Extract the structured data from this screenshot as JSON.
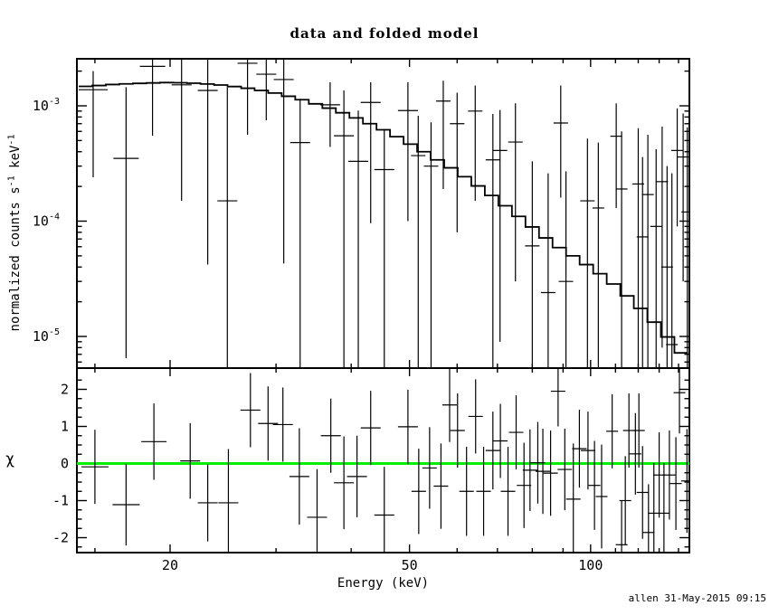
{
  "title": "data and folded model",
  "x_label": "Energy (keV)",
  "chi_label": "χ",
  "credit": "allen 31-May-2015 09:15",
  "colors": {
    "foreground": "#000000",
    "background": "#ffffff",
    "model_line": "#000000",
    "data_cross": "#000000",
    "zero_line_green": "#00f000"
  },
  "y_axis_top_label_segments": [
    {
      "text": "normalized counts s"
    },
    {
      "text": "-1",
      "sup": true
    },
    {
      "text": " keV"
    },
    {
      "text": "-1",
      "sup": true
    }
  ],
  "chart_data": [
    {
      "type": "line",
      "panel": "top",
      "title": "data and folded model",
      "xlabel": "Energy (keV)",
      "ylabel": "normalized counts s^-1 keV^-1",
      "xscale": "log",
      "yscale": "log",
      "xlim": [
        14.0,
        145.9
      ],
      "ylim": [
        5.3e-06,
        0.00253
      ],
      "grid": false,
      "legend": "none",
      "x_major_ticks": [
        {
          "value": 20,
          "label": "20"
        },
        {
          "value": 50,
          "label": "50"
        },
        {
          "value": 100,
          "label": "100"
        }
      ],
      "x_minor_ticks": [
        15,
        30,
        40,
        60,
        70,
        80,
        90,
        110,
        120,
        130,
        140
      ],
      "y_major_ticks": [
        {
          "value": 0.001,
          "base": "10",
          "exp": "-3"
        },
        {
          "value": 0.0001,
          "base": "10",
          "exp": "-4"
        },
        {
          "value": 1e-05,
          "base": "10",
          "exp": "-5"
        }
      ],
      "y_minor_ticks": [
        0.002,
        0.0009,
        0.0008,
        0.0007,
        0.0006,
        0.0005,
        0.0004,
        0.0003,
        0.0002,
        9e-05,
        8e-05,
        7e-05,
        6e-05,
        5e-05,
        4e-05,
        3e-05,
        2e-05,
        9e-06,
        8e-06,
        7e-06,
        6e-06
      ],
      "model": {
        "name": "folded model",
        "style": "step-histogram",
        "bin_edges_keV": [
          14.1,
          14.85,
          15.64,
          16.47,
          17.35,
          18.27,
          19.24,
          20.26,
          21.34,
          22.47,
          23.67,
          24.92,
          26.25,
          27.64,
          29.11,
          30.66,
          32.29,
          34.01,
          35.82,
          37.72,
          39.73,
          41.84,
          44.07,
          46.41,
          48.88,
          51.48,
          54.22,
          57.1,
          60.14,
          63.34,
          66.71,
          70.26,
          74.0,
          77.93,
          82.08,
          86.44,
          91.04,
          95.89,
          100.99,
          106.36,
          112.02,
          117.98,
          124.25,
          130.86,
          137.82,
          145.15
        ],
        "values": [
          0.001475,
          0.0015,
          0.00153,
          0.00155,
          0.001565,
          0.00158,
          0.00159,
          0.001585,
          0.00157,
          0.001545,
          0.001515,
          0.00147,
          0.00142,
          0.00136,
          0.00129,
          0.00121,
          0.00113,
          0.00104,
          0.000955,
          0.00087,
          0.000785,
          0.0007,
          0.00062,
          0.00054,
          0.000465,
          0.0004,
          0.00034,
          0.00029,
          0.000243,
          0.000202,
          0.000167,
          0.000136,
          0.00011,
          8.9e-05,
          7.15e-05,
          5.9e-05,
          5e-05,
          4.2e-05,
          3.5e-05,
          2.85e-05,
          2.25e-05,
          1.75e-05,
          1.33e-05,
          9.9e-06,
          7.2e-06
        ]
      },
      "data_points": [
        {
          "e": 14.9,
          "v": 0.00138,
          "lo": 0.00024,
          "hi": 0.002,
          "hw": 16
        },
        {
          "e": 16.9,
          "v": 0.00035,
          "lo": 6.5e-06,
          "hi": 0.00145
        },
        {
          "e": 18.7,
          "v": 0.0022,
          "lo": 0.00055,
          "hi": 0.0035
        },
        {
          "e": 20.9,
          "v": 0.00152,
          "lo": 0.00015,
          "hi": 0.0029
        },
        {
          "e": 23.1,
          "v": 0.00136,
          "lo": 4.2e-05,
          "hi": 0.0029
        },
        {
          "e": 24.9,
          "v": 0.00015,
          "lo": 4.5e-06,
          "hi": 0.00144
        },
        {
          "e": 26.9,
          "v": 0.00234,
          "lo": 0.00056,
          "hi": 0.0034
        },
        {
          "e": 28.9,
          "v": 0.00188,
          "lo": 0.00075,
          "hi": 0.0031
        },
        {
          "e": 30.9,
          "v": 0.00169,
          "lo": 4.3e-05,
          "hi": 0.0029
        },
        {
          "e": 32.9,
          "v": 0.00048,
          "lo": 4.5e-06,
          "hi": 0.00115
        },
        {
          "e": 36.9,
          "v": 0.00102,
          "lo": 0.00044,
          "hi": 0.0016
        },
        {
          "e": 38.9,
          "v": 0.00055,
          "lo": 4.5e-06,
          "hi": 0.00136
        },
        {
          "e": 41.1,
          "v": 0.00033,
          "lo": 4.5e-06,
          "hi": 0.00091
        },
        {
          "e": 43.1,
          "v": 0.00107,
          "lo": 9.6e-05,
          "hi": 0.0016
        },
        {
          "e": 45.4,
          "v": 0.00028,
          "lo": 4.5e-06,
          "hi": 0.00063
        },
        {
          "e": 49.7,
          "v": 0.00091,
          "lo": 0.0001,
          "hi": 0.0016
        },
        {
          "e": 51.7,
          "v": 0.00037,
          "lo": 4.5e-06,
          "hi": 0.00082
        },
        {
          "e": 54.3,
          "v": 0.0003,
          "lo": 4.5e-06,
          "hi": 0.00072
        },
        {
          "e": 56.9,
          "v": 0.0011,
          "lo": 0.00019,
          "hi": 0.00165
        },
        {
          "e": 60.0,
          "v": 0.0007,
          "lo": 8e-05,
          "hi": 0.0013
        },
        {
          "e": 64.3,
          "v": 0.0009,
          "lo": 0.00015,
          "hi": 0.0015
        },
        {
          "e": 68.8,
          "v": 0.00034,
          "lo": 4.5e-06,
          "hi": 0.00085
        },
        {
          "e": 70.7,
          "v": 0.00041,
          "lo": 9e-06,
          "hi": 0.00092
        },
        {
          "e": 75.0,
          "v": 0.000485,
          "lo": 3e-05,
          "hi": 0.00105
        },
        {
          "e": 80.0,
          "v": 6.1e-05,
          "lo": 4.5e-06,
          "hi": 0.00033
        },
        {
          "e": 85.0,
          "v": 2.4e-05,
          "lo": 4e-06,
          "hi": 0.00026
        },
        {
          "e": 89.2,
          "v": 0.00071,
          "lo": 0.00016,
          "hi": 0.0015
        },
        {
          "e": 91.0,
          "v": 3e-05,
          "lo": 4e-06,
          "hi": 0.00027
        },
        {
          "e": 98.8,
          "v": 0.00015,
          "lo": 4.5e-06,
          "hi": 0.00052
        },
        {
          "e": 103.0,
          "v": 0.00013,
          "lo": 4.5e-06,
          "hi": 0.00048
        },
        {
          "e": 110.3,
          "v": 0.000545,
          "lo": 0.00013,
          "hi": 0.00105
        },
        {
          "e": 112.6,
          "v": 0.00019,
          "lo": 4.5e-06,
          "hi": 0.0006
        },
        {
          "e": 120.0,
          "v": 0.00021,
          "lo": 4.5e-06,
          "hi": 0.00064
        },
        {
          "e": 122.0,
          "v": 7.3e-05,
          "lo": 4.5e-06,
          "hi": 0.00036
        },
        {
          "e": 124.5,
          "v": 0.00017,
          "lo": 4.5e-06,
          "hi": 0.00056
        },
        {
          "e": 128.5,
          "v": 9e-05,
          "lo": 4.5e-06,
          "hi": 0.00042
        },
        {
          "e": 131.5,
          "v": 0.00022,
          "lo": 8e-06,
          "hi": 0.00066
        },
        {
          "e": 134.0,
          "v": 4e-05,
          "lo": 4e-06,
          "hi": 0.0003
        },
        {
          "e": 136.5,
          "v": 8.5e-06,
          "lo": 3.5e-06,
          "hi": 0.00026
        },
        {
          "e": 139.3,
          "v": 0.00041,
          "lo": 9e-05,
          "hi": 0.00095
        },
        {
          "e": 142.5,
          "v": 0.00036,
          "lo": 3e-05,
          "hi": 0.00086
        },
        {
          "e": 144.8,
          "v": 0.00012,
          "lo": 5e-06,
          "hi": 0.00065
        }
      ]
    },
    {
      "type": "scatter",
      "panel": "bottom",
      "ylabel": "χ",
      "xscale": "log",
      "xlim": [
        14.0,
        145.9
      ],
      "ylim": [
        -2.4,
        2.57
      ],
      "grid": false,
      "zero_line": {
        "y": 0,
        "color": "#00f000"
      },
      "y_major_ticks": [
        {
          "value": 2,
          "label": "2"
        },
        {
          "value": 1,
          "label": "1"
        },
        {
          "value": 0,
          "label": "0"
        },
        {
          "value": -1,
          "label": "-1"
        },
        {
          "value": -2,
          "label": "-2"
        }
      ],
      "y_minor_ticks": [
        2.25,
        1.75,
        1.5,
        1.25,
        0.75,
        0.5,
        0.25,
        -0.25,
        -0.5,
        -0.75,
        -1.25,
        -1.5,
        -1.75,
        -2.25
      ],
      "residuals": [
        {
          "e": 15.0,
          "chi": -0.09,
          "err": 1.0,
          "hw": 15
        },
        {
          "e": 16.9,
          "chi": -1.11,
          "err": 1.1,
          "hw": 15
        },
        {
          "e": 18.8,
          "chi": 0.59,
          "err": 1.03
        },
        {
          "e": 21.6,
          "chi": 0.07,
          "err": 1.02
        },
        {
          "e": 23.1,
          "chi": -1.06,
          "err": 1.04
        },
        {
          "e": 25.0,
          "chi": -1.06,
          "err": 1.45
        },
        {
          "e": 27.2,
          "chi": 1.44,
          "err": 1.0
        },
        {
          "e": 29.1,
          "chi": 1.08,
          "err": 1.0
        },
        {
          "e": 30.8,
          "chi": 1.05,
          "err": 1.0
        },
        {
          "e": 32.8,
          "chi": -0.35,
          "err": 1.3
        },
        {
          "e": 35.1,
          "chi": -1.45,
          "err": 1.3
        },
        {
          "e": 37.0,
          "chi": 0.75,
          "err": 1.0
        },
        {
          "e": 38.9,
          "chi": -0.52,
          "err": 1.25
        },
        {
          "e": 40.9,
          "chi": -0.35,
          "err": 1.1
        },
        {
          "e": 43.1,
          "chi": 0.96,
          "err": 1.0
        },
        {
          "e": 45.4,
          "chi": -1.39,
          "err": 1.3
        },
        {
          "e": 49.7,
          "chi": 0.99,
          "err": 1.0
        },
        {
          "e": 51.8,
          "chi": -0.75,
          "err": 1.15
        },
        {
          "e": 54.0,
          "chi": -0.12,
          "err": 1.1
        },
        {
          "e": 56.4,
          "chi": -0.61,
          "err": 1.15
        },
        {
          "e": 58.3,
          "chi": 1.58,
          "err": 1.0
        },
        {
          "e": 60.1,
          "chi": 0.89,
          "err": 1.0
        },
        {
          "e": 62.2,
          "chi": -0.75,
          "err": 1.2
        },
        {
          "e": 64.4,
          "chi": 1.27,
          "err": 1.0
        },
        {
          "e": 66.4,
          "chi": -0.75,
          "err": 1.2
        },
        {
          "e": 68.8,
          "chi": 0.35,
          "err": 1.05
        },
        {
          "e": 70.8,
          "chi": 0.61,
          "err": 1.0
        },
        {
          "e": 72.9,
          "chi": -0.75,
          "err": 1.2
        },
        {
          "e": 75.2,
          "chi": 0.84,
          "err": 1.0
        },
        {
          "e": 77.5,
          "chi": -0.59,
          "err": 1.15
        },
        {
          "e": 79.3,
          "chi": -0.18,
          "err": 1.1
        },
        {
          "e": 81.7,
          "chi": 0.02,
          "err": 1.1
        },
        {
          "e": 83.3,
          "chi": -0.21,
          "err": 1.15
        },
        {
          "e": 85.8,
          "chi": -0.26,
          "err": 1.15
        },
        {
          "e": 88.3,
          "chi": 1.95,
          "err": 0.95
        },
        {
          "e": 90.6,
          "chi": -0.16,
          "err": 1.1
        },
        {
          "e": 93.6,
          "chi": -0.96,
          "err": 1.5
        },
        {
          "e": 95.8,
          "chi": 0.4,
          "err": 1.05
        },
        {
          "e": 99.0,
          "chi": 0.35,
          "err": 1.05
        },
        {
          "e": 101.5,
          "chi": -0.59,
          "err": 1.2
        },
        {
          "e": 104.3,
          "chi": -0.89,
          "err": 1.4
        },
        {
          "e": 108.6,
          "chi": 0.87,
          "err": 1.0
        },
        {
          "e": 112.6,
          "chi": -2.19,
          "err": 1.2
        },
        {
          "e": 114.2,
          "chi": -1.0,
          "err": 1.2
        },
        {
          "e": 115.8,
          "chi": 0.89,
          "err": 1.0
        },
        {
          "e": 118.7,
          "chi": 0.26,
          "err": 1.1
        },
        {
          "e": 120.3,
          "chi": 0.89,
          "err": 1.0
        },
        {
          "e": 122.0,
          "chi": -0.78,
          "err": 1.25
        },
        {
          "e": 124.8,
          "chi": -1.86,
          "err": 1.3
        },
        {
          "e": 127.4,
          "chi": -1.34,
          "err": 1.35
        },
        {
          "e": 130.0,
          "chi": -0.31,
          "err": 1.15
        },
        {
          "e": 132.4,
          "chi": -1.34,
          "err": 1.35
        },
        {
          "e": 135.2,
          "chi": -0.31,
          "err": 1.2
        },
        {
          "e": 138.6,
          "chi": -0.54,
          "err": 1.25
        },
        {
          "e": 140.5,
          "chi": 1.91,
          "err": 1.1
        },
        {
          "e": 144.6,
          "chi": -0.47,
          "err": 1.4
        }
      ]
    }
  ]
}
